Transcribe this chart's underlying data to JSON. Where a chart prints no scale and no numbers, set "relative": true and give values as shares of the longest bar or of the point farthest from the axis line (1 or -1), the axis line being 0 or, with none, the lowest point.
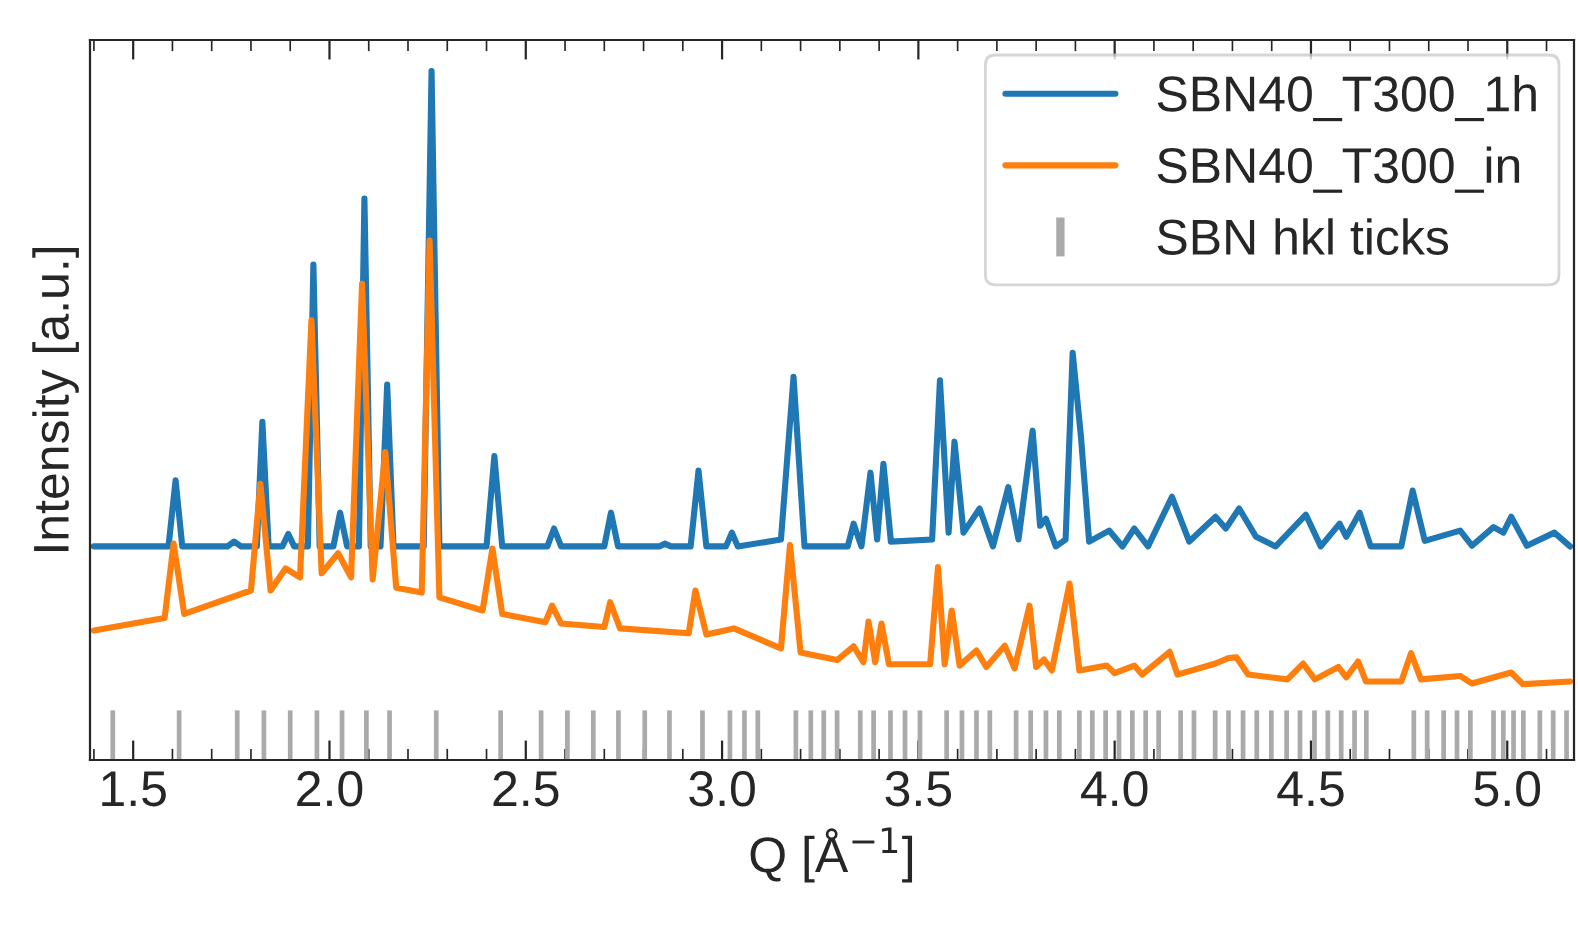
{
  "chart_data": {
    "type": "line",
    "relative": true,
    "xlabel": "Q [Å$^{−1}$]",
    "ylabel": "Intensity [a.u.]",
    "xlim": [
      1.39,
      5.17
    ],
    "xticks": [
      {
        "value": 1.5,
        "label": "1.5"
      },
      {
        "value": 2.0,
        "label": "2.0"
      },
      {
        "value": 2.5,
        "label": "2.5"
      },
      {
        "value": 3.0,
        "label": "3.0"
      },
      {
        "value": 3.5,
        "label": "3.5"
      },
      {
        "value": 4.0,
        "label": "4.0"
      },
      {
        "value": 4.5,
        "label": "4.5"
      },
      {
        "value": 5.0,
        "label": "5.0"
      }
    ],
    "tick_labels": "x",
    "legend": "top right",
    "grid": false,
    "line_style": "solid",
    "marker": "none",
    "series": [
      {
        "name": "SBN40_T300_1h",
        "color": "#1f77b4",
        "x": [
          1.4,
          1.59,
          1.608,
          1.625,
          1.74,
          1.757,
          1.775,
          1.815,
          1.829,
          1.845,
          1.88,
          1.895,
          1.91,
          1.945,
          1.959,
          1.975,
          2.01,
          2.027,
          2.045,
          2.075,
          2.089,
          2.105,
          2.13,
          2.147,
          2.163,
          2.24,
          2.26,
          2.28,
          2.4,
          2.42,
          2.44,
          2.555,
          2.572,
          2.59,
          2.7,
          2.717,
          2.735,
          2.84,
          2.854,
          2.87,
          2.92,
          2.94,
          2.96,
          3.01,
          3.025,
          3.04,
          3.15,
          3.182,
          3.21,
          3.32,
          3.335,
          3.355,
          3.378,
          3.395,
          3.411,
          3.43,
          3.535,
          3.555,
          3.577,
          3.592,
          3.615,
          3.656,
          3.69,
          3.729,
          3.755,
          3.791,
          3.81,
          3.825,
          3.85,
          3.875,
          3.893,
          3.914,
          3.935,
          3.986,
          4.02,
          4.05,
          4.085,
          4.146,
          4.19,
          4.257,
          4.283,
          4.317,
          4.36,
          4.41,
          4.487,
          4.525,
          4.573,
          4.59,
          4.624,
          4.652,
          4.73,
          4.759,
          4.79,
          4.88,
          4.91,
          4.965,
          4.99,
          5.01,
          5.05,
          5.12,
          5.16
        ],
        "values": [
          0.31,
          0.31,
          0.406,
          0.31,
          0.31,
          0.317,
          0.31,
          0.31,
          0.491,
          0.31,
          0.31,
          0.328,
          0.31,
          0.31,
          0.719,
          0.31,
          0.31,
          0.359,
          0.31,
          0.31,
          0.815,
          0.31,
          0.31,
          0.545,
          0.31,
          0.31,
          1.0,
          0.31,
          0.31,
          0.441,
          0.31,
          0.31,
          0.336,
          0.31,
          0.31,
          0.359,
          0.31,
          0.31,
          0.314,
          0.31,
          0.31,
          0.42,
          0.31,
          0.31,
          0.33,
          0.31,
          0.32,
          0.556,
          0.31,
          0.31,
          0.343,
          0.31,
          0.417,
          0.32,
          0.43,
          0.317,
          0.32,
          0.551,
          0.33,
          0.462,
          0.33,
          0.365,
          0.31,
          0.396,
          0.32,
          0.478,
          0.34,
          0.35,
          0.31,
          0.32,
          0.591,
          0.47,
          0.317,
          0.333,
          0.31,
          0.336,
          0.31,
          0.382,
          0.317,
          0.353,
          0.336,
          0.365,
          0.324,
          0.31,
          0.356,
          0.31,
          0.343,
          0.324,
          0.359,
          0.31,
          0.31,
          0.391,
          0.318,
          0.333,
          0.311,
          0.338,
          0.33,
          0.353,
          0.311,
          0.33,
          0.31
        ]
      },
      {
        "name": "SBN40_T300_in",
        "color": "#ff7f0e",
        "x": [
          1.4,
          1.58,
          1.603,
          1.63,
          1.8,
          1.824,
          1.85,
          1.888,
          1.925,
          1.954,
          1.98,
          2.022,
          2.055,
          2.083,
          2.11,
          2.142,
          2.17,
          2.235,
          2.255,
          2.28,
          2.39,
          2.415,
          2.44,
          2.55,
          2.567,
          2.59,
          2.7,
          2.715,
          2.74,
          2.915,
          2.932,
          2.96,
          3.03,
          3.15,
          3.173,
          3.2,
          3.293,
          3.335,
          3.36,
          3.373,
          3.39,
          3.406,
          3.425,
          3.53,
          3.55,
          3.567,
          3.585,
          3.605,
          3.648,
          3.673,
          3.72,
          3.745,
          3.783,
          3.8,
          3.82,
          3.84,
          3.885,
          3.91,
          3.98,
          4.0,
          4.05,
          4.07,
          4.14,
          4.16,
          4.257,
          4.29,
          4.31,
          4.34,
          4.44,
          4.48,
          4.51,
          4.57,
          4.59,
          4.62,
          4.64,
          4.73,
          4.755,
          4.78,
          4.88,
          4.91,
          5.01,
          5.04,
          5.16
        ],
        "values": [
          0.188,
          0.206,
          0.314,
          0.212,
          0.246,
          0.401,
          0.246,
          0.278,
          0.265,
          0.638,
          0.271,
          0.3,
          0.265,
          0.691,
          0.262,
          0.447,
          0.25,
          0.243,
          0.754,
          0.236,
          0.217,
          0.307,
          0.212,
          0.2,
          0.224,
          0.198,
          0.193,
          0.229,
          0.191,
          0.184,
          0.246,
          0.182,
          0.191,
          0.162,
          0.312,
          0.156,
          0.145,
          0.165,
          0.142,
          0.201,
          0.142,
          0.198,
          0.139,
          0.139,
          0.28,
          0.139,
          0.217,
          0.137,
          0.159,
          0.135,
          0.166,
          0.133,
          0.224,
          0.135,
          0.146,
          0.13,
          0.256,
          0.13,
          0.137,
          0.126,
          0.137,
          0.124,
          0.157,
          0.124,
          0.14,
          0.148,
          0.149,
          0.124,
          0.117,
          0.14,
          0.117,
          0.135,
          0.12,
          0.143,
          0.114,
          0.114,
          0.155,
          0.117,
          0.122,
          0.111,
          0.127,
          0.11,
          0.114
        ]
      },
      {
        "name": "SBN hkl ticks",
        "type": "bar",
        "color": "#aaaaaa",
        "x": [
          1.448,
          1.617,
          1.765,
          1.833,
          1.9,
          1.968,
          2.032,
          2.094,
          2.153,
          2.272,
          2.436,
          2.539,
          2.606,
          2.672,
          2.736,
          2.803,
          2.866,
          2.95,
          3.02,
          3.057,
          3.091,
          3.188,
          3.226,
          3.259,
          3.293,
          3.352,
          3.386,
          3.429,
          3.466,
          3.504,
          3.572,
          3.611,
          3.648,
          3.682,
          3.749,
          3.786,
          3.825,
          3.859,
          3.91,
          3.943,
          3.977,
          4.011,
          4.045,
          4.079,
          4.112,
          4.168,
          4.202,
          4.256,
          4.29,
          4.327,
          4.362,
          4.399,
          4.438,
          4.472,
          4.509,
          4.543,
          4.577,
          4.611,
          4.641,
          4.762,
          4.796,
          4.838,
          4.872,
          4.906,
          4.965,
          4.99,
          5.016,
          5.041,
          5.083,
          5.117,
          5.151
        ],
        "values": [
          0.072,
          0.072,
          0.072,
          0.072,
          0.072,
          0.072,
          0.072,
          0.072,
          0.072,
          0.072,
          0.072,
          0.072,
          0.072,
          0.072,
          0.072,
          0.072,
          0.072,
          0.072,
          0.072,
          0.072,
          0.072,
          0.072,
          0.072,
          0.072,
          0.072,
          0.072,
          0.072,
          0.072,
          0.072,
          0.072,
          0.072,
          0.072,
          0.072,
          0.072,
          0.072,
          0.072,
          0.072,
          0.072,
          0.072,
          0.072,
          0.072,
          0.072,
          0.072,
          0.072,
          0.072,
          0.072,
          0.072,
          0.072,
          0.072,
          0.072,
          0.072,
          0.072,
          0.072,
          0.072,
          0.072,
          0.072,
          0.072,
          0.072,
          0.072,
          0.072,
          0.072,
          0.072,
          0.072,
          0.072,
          0.072,
          0.072,
          0.072,
          0.072,
          0.072,
          0.072,
          0.072
        ]
      }
    ]
  }
}
